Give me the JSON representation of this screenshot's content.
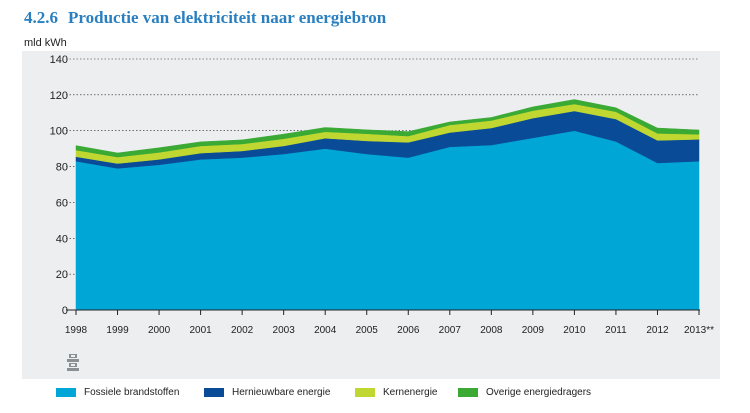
{
  "header": {
    "number": "4.2.6",
    "title": "Productie van elektriciteit naar energiebron",
    "unit": "mld kWh"
  },
  "colors": {
    "fossiel": "#00a6d6",
    "hernieuwbaar": "#0a4b97",
    "kern": "#bfd730",
    "overig": "#3aaa35",
    "axis": "#222222",
    "grid": "#222222",
    "panel": "#eceef0"
  },
  "chart_data": {
    "type": "area",
    "stacked": true,
    "categories": [
      "1998",
      "1999",
      "2000",
      "2001",
      "2002",
      "2003",
      "2004",
      "2005",
      "2006",
      "2007",
      "2008",
      "2009",
      "2010",
      "2011",
      "2012",
      "2013**"
    ],
    "ylabel": "mld kWh",
    "ylim": [
      0,
      140
    ],
    "yticks": [
      0,
      20,
      40,
      60,
      80,
      100,
      120,
      140
    ],
    "grid": "horizontal dotted",
    "legend_position": "bottom",
    "series": [
      {
        "name": "Fossiele brandstoffen",
        "color": "#00a6d6",
        "values": [
          83,
          79,
          81,
          84,
          85,
          87,
          90,
          87,
          85,
          91,
          92,
          96,
          100,
          94,
          82,
          83
        ]
      },
      {
        "name": "Hernieuwbare energie",
        "color": "#0a4b97",
        "values": [
          2.5,
          2.7,
          3.0,
          3.5,
          3.7,
          4.5,
          5.8,
          7.3,
          8.5,
          8.0,
          9.5,
          11.0,
          11.0,
          12.5,
          12.6,
          12.2
        ]
      },
      {
        "name": "Kernenergie",
        "color": "#bfd730",
        "values": [
          3.7,
          3.6,
          3.9,
          4.0,
          3.9,
          4.0,
          3.6,
          4.0,
          3.5,
          4.2,
          4.2,
          4.2,
          3.9,
          4.1,
          3.9,
          2.8
        ]
      },
      {
        "name": "Overige energiedragers",
        "color": "#3aaa35",
        "values": [
          2.5,
          2.3,
          2.6,
          2.3,
          2.3,
          2.6,
          2.4,
          2.2,
          2.5,
          1.7,
          1.7,
          2.1,
          2.5,
          2.2,
          3.0,
          2.4
        ]
      }
    ]
  }
}
